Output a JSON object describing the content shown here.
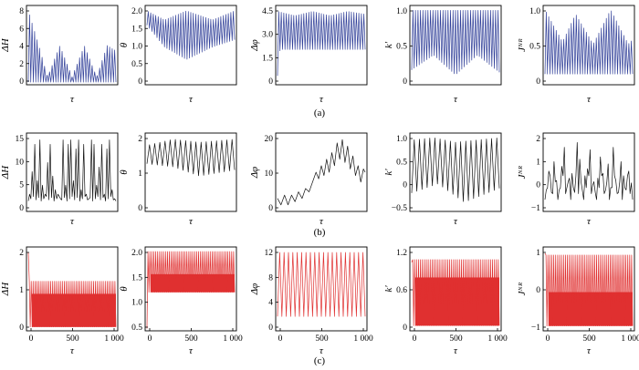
{
  "chart_data": {
    "type": "line",
    "rows": [
      {
        "caption": "(a)",
        "color": "#2f3e98",
        "panels": [
          {
            "ylabel": "ΔH",
            "xlabel": "τ",
            "yticks": [
              "0",
              "2",
              "4",
              "6",
              "8"
            ],
            "ylim": [
              -0.3,
              8.8
            ],
            "xticks": [],
            "kind": "osc",
            "n": 70,
            "lower": [
              0,
              0,
              0
            ],
            "upper": [
              [
                0,
                8.2
              ],
              [
                0.12,
                4.2
              ],
              [
                0.22,
                0.6
              ],
              [
                0.36,
                4.2
              ],
              [
                0.5,
                0.6
              ],
              [
                0.64,
                4.2
              ],
              [
                0.78,
                0.6
              ],
              [
                0.9,
                4.2
              ],
              [
                1,
                3.6
              ]
            ]
          },
          {
            "ylabel": "θ",
            "xlabel": "τ",
            "yticks": [
              "0",
              "0.5",
              "1.0",
              "1.5",
              "2.0"
            ],
            "ylim": [
              -0.05,
              2.15
            ],
            "xticks": [],
            "kind": "osc",
            "n": 70,
            "lower": [
              [
                0,
                1.6
              ],
              [
                0.2,
                1.0
              ],
              [
                0.45,
                0.65
              ],
              [
                0.75,
                1.0
              ],
              [
                1,
                1.2
              ]
            ],
            "upper": [
              [
                0,
                2.0
              ],
              [
                0.2,
                1.75
              ],
              [
                0.45,
                2.0
              ],
              [
                0.75,
                1.75
              ],
              [
                1,
                2.0
              ]
            ]
          },
          {
            "ylabel": "Δφ",
            "xlabel": "τ",
            "yticks": [
              "0",
              "1.5",
              "3.0",
              "4.5"
            ],
            "ylim": [
              -0.2,
              5.2
            ],
            "xticks": [],
            "kind": "osc",
            "n": 70,
            "lower": [
              [
                0,
                0.4
              ],
              [
                0.03,
                2.2
              ],
              [
                1,
                2.2
              ]
            ],
            "upper": [
              [
                0,
                4.8
              ],
              [
                0.2,
                4.5
              ],
              [
                0.4,
                4.8
              ],
              [
                0.6,
                4.5
              ],
              [
                0.8,
                4.8
              ],
              [
                1,
                4.6
              ]
            ]
          },
          {
            "ylabel": "k′",
            "xlabel": "τ",
            "yticks": [
              "0",
              "0.5",
              "1.0"
            ],
            "ylim": [
              -0.5,
              1.1
            ],
            "xticks": [],
            "kind": "osc",
            "n": 70,
            "lower": [
              [
                0,
                -0.2
              ],
              [
                0.25,
                0.1
              ],
              [
                0.5,
                -0.3
              ],
              [
                0.75,
                0.1
              ],
              [
                1,
                -0.25
              ]
            ],
            "upper": [
              1,
              1,
              1
            ]
          },
          {
            "ylabel": "Jᴺᴿ",
            "xlabel": "τ",
            "yticks": [
              "0",
              "0.5",
              "1.0"
            ],
            "ylim": [
              -0.75,
              1.1
            ],
            "xticks": [],
            "kind": "osc",
            "n": 70,
            "lower": [
              -0.5,
              -0.5,
              -0.5
            ],
            "upper": [
              [
                0,
                1.0
              ],
              [
                0.2,
                0.25
              ],
              [
                0.35,
                0.9
              ],
              [
                0.55,
                0.2
              ],
              [
                0.75,
                1.0
              ],
              [
                0.95,
                0.2
              ],
              [
                1,
                0.3
              ]
            ]
          }
        ]
      },
      {
        "caption": "(b)",
        "color": "#111111",
        "panels": [
          {
            "ylabel": "ΔH",
            "xlabel": "τ",
            "yticks": [
              "0",
              "5",
              "10",
              "15"
            ],
            "ylim": [
              -0.8,
              16.5
            ],
            "xticks": [],
            "kind": "spikes",
            "n": 34,
            "peaks": [
              3,
              8,
              14,
              6,
              15,
              5,
              3,
              10,
              14,
              7,
              4,
              3,
              2,
              15,
              5,
              14,
              15,
              6,
              13,
              15,
              4,
              14,
              3,
              2,
              15,
              14,
              5,
              9,
              14,
              3,
              13,
              15,
              4,
              2
            ]
          },
          {
            "ylabel": "θ",
            "xlabel": "τ",
            "yticks": [
              "0",
              "1",
              "2"
            ],
            "ylim": [
              -0.15,
              2.4
            ],
            "xticks": [],
            "kind": "osc",
            "n": 34,
            "lower": [
              [
                0,
                1.4
              ],
              [
                0.3,
                1.3
              ],
              [
                0.6,
                1.0
              ],
              [
                1,
                1.2
              ]
            ],
            "upper": [
              [
                0,
                2.0
              ],
              [
                0.3,
                2.2
              ],
              [
                0.6,
                2.1
              ],
              [
                1,
                2.2
              ]
            ]
          },
          {
            "ylabel": "Δφ",
            "xlabel": "τ",
            "yticks": [
              "0",
              "10",
              "20"
            ],
            "ylim": [
              -1,
              23
            ],
            "xticks": [],
            "kind": "walk",
            "points": [
              [
                0,
                3
              ],
              [
                0.04,
                1
              ],
              [
                0.08,
                4
              ],
              [
                0.12,
                1
              ],
              [
                0.16,
                4
              ],
              [
                0.2,
                2
              ],
              [
                0.24,
                5
              ],
              [
                0.28,
                3
              ],
              [
                0.32,
                6
              ],
              [
                0.36,
                5
              ],
              [
                0.4,
                8
              ],
              [
                0.44,
                11
              ],
              [
                0.47,
                9
              ],
              [
                0.5,
                13
              ],
              [
                0.53,
                10
              ],
              [
                0.56,
                15
              ],
              [
                0.59,
                11
              ],
              [
                0.62,
                17
              ],
              [
                0.65,
                13
              ],
              [
                0.68,
                20
              ],
              [
                0.71,
                15
              ],
              [
                0.74,
                21
              ],
              [
                0.77,
                14
              ],
              [
                0.8,
                19
              ],
              [
                0.83,
                12
              ],
              [
                0.86,
                16
              ],
              [
                0.89,
                10
              ],
              [
                0.92,
                13
              ],
              [
                0.95,
                8
              ],
              [
                0.98,
                12
              ],
              [
                1,
                11
              ]
            ]
          },
          {
            "ylabel": "k′",
            "xlabel": "τ",
            "yticks": [
              "−0.5",
              "0",
              "0.5",
              "1.0"
            ],
            "ylim": [
              -0.6,
              1.1
            ],
            "xticks": [],
            "kind": "osc",
            "n": 34,
            "lower": [
              [
                0,
                -0.2
              ],
              [
                0.3,
                0.0
              ],
              [
                0.6,
                -0.4
              ],
              [
                1,
                -0.1
              ]
            ],
            "upper": [
              [
                0,
                0.95
              ],
              [
                0.25,
                1.0
              ],
              [
                0.5,
                0.9
              ],
              [
                1,
                1.0
              ]
            ]
          },
          {
            "ylabel": "Jᴺᴿ",
            "xlabel": "τ",
            "yticks": [
              "−1",
              "0",
              "1",
              "2"
            ],
            "ylim": [
              -1.1,
              2.2
            ],
            "xticks": [],
            "kind": "spikes",
            "base": -0.6,
            "n": 34,
            "peaks": [
              -0.2,
              0.6,
              -0.3,
              1.0,
              0.2,
              -0.2,
              0.8,
              1.6,
              -0.1,
              0.3,
              0.5,
              -0.3,
              1.8,
              1.1,
              -0.2,
              0.4,
              0.7,
              1.5,
              0.0,
              -0.3,
              0.3,
              1.2,
              0.5,
              -0.2,
              0.9,
              -0.1,
              1.6,
              0.2,
              -0.3,
              1.0,
              0.4,
              -0.2,
              0.6,
              0.1
            ]
          }
        ]
      },
      {
        "caption": "(c)",
        "color": "#e03030",
        "panels": [
          {
            "ylabel": "ΔH",
            "xlabel": "τ",
            "yticks": [
              "0",
              "1",
              "2"
            ],
            "ylim": [
              -0.05,
              2.15
            ],
            "xticks": [
              "0",
              "500",
              "1 000"
            ],
            "kind": "band",
            "n": 90,
            "lo": 0.05,
            "hi": 1.25,
            "mid": 0.92,
            "init": 2.0
          },
          {
            "ylabel": "θ",
            "xlabel": "τ",
            "yticks": [
              "0.5",
              "1.0",
              "1.5",
              "2.0"
            ],
            "ylim": [
              0.3,
              2.15
            ],
            "xticks": [
              "0",
              "500",
              "1 000"
            ],
            "kind": "band",
            "n": 90,
            "lo": 1.15,
            "hi": 2.05,
            "mid": 1.55,
            "init": 0.35
          },
          {
            "ylabel": "Δφ",
            "xlabel": "τ",
            "yticks": [
              "0",
              "4",
              "8",
              "12"
            ],
            "ylim": [
              -0.3,
              12
            ],
            "xticks": [
              "0",
              "500",
              "1 000"
            ],
            "kind": "osc",
            "n": 40,
            "lower": [
              [
                0,
                1.8
              ],
              [
                1,
                1.8
              ]
            ],
            "upper": [
              [
                0,
                11.2
              ],
              [
                1,
                11.2
              ]
            ]
          },
          {
            "ylabel": "k′",
            "xlabel": "τ",
            "yticks": [
              "0",
              "0.6",
              "1.2"
            ],
            "ylim": [
              -0.4,
              1.25
            ],
            "xticks": [
              "0",
              "500",
              "1 000"
            ],
            "kind": "band",
            "n": 90,
            "lo": -0.3,
            "hi": 1.0,
            "mid": 0.65,
            "init": 0.95
          },
          {
            "ylabel": "Jᴺᴿ",
            "xlabel": "τ",
            "yticks": [
              "−1",
              "0",
              "1"
            ],
            "ylim": [
              -1.1,
              1.5
            ],
            "xticks": [
              "0",
              "500",
              "1 000"
            ],
            "kind": "band",
            "n": 90,
            "lo": -0.95,
            "hi": 1.25,
            "mid": 0.1,
            "init": 1.3
          }
        ]
      }
    ]
  }
}
